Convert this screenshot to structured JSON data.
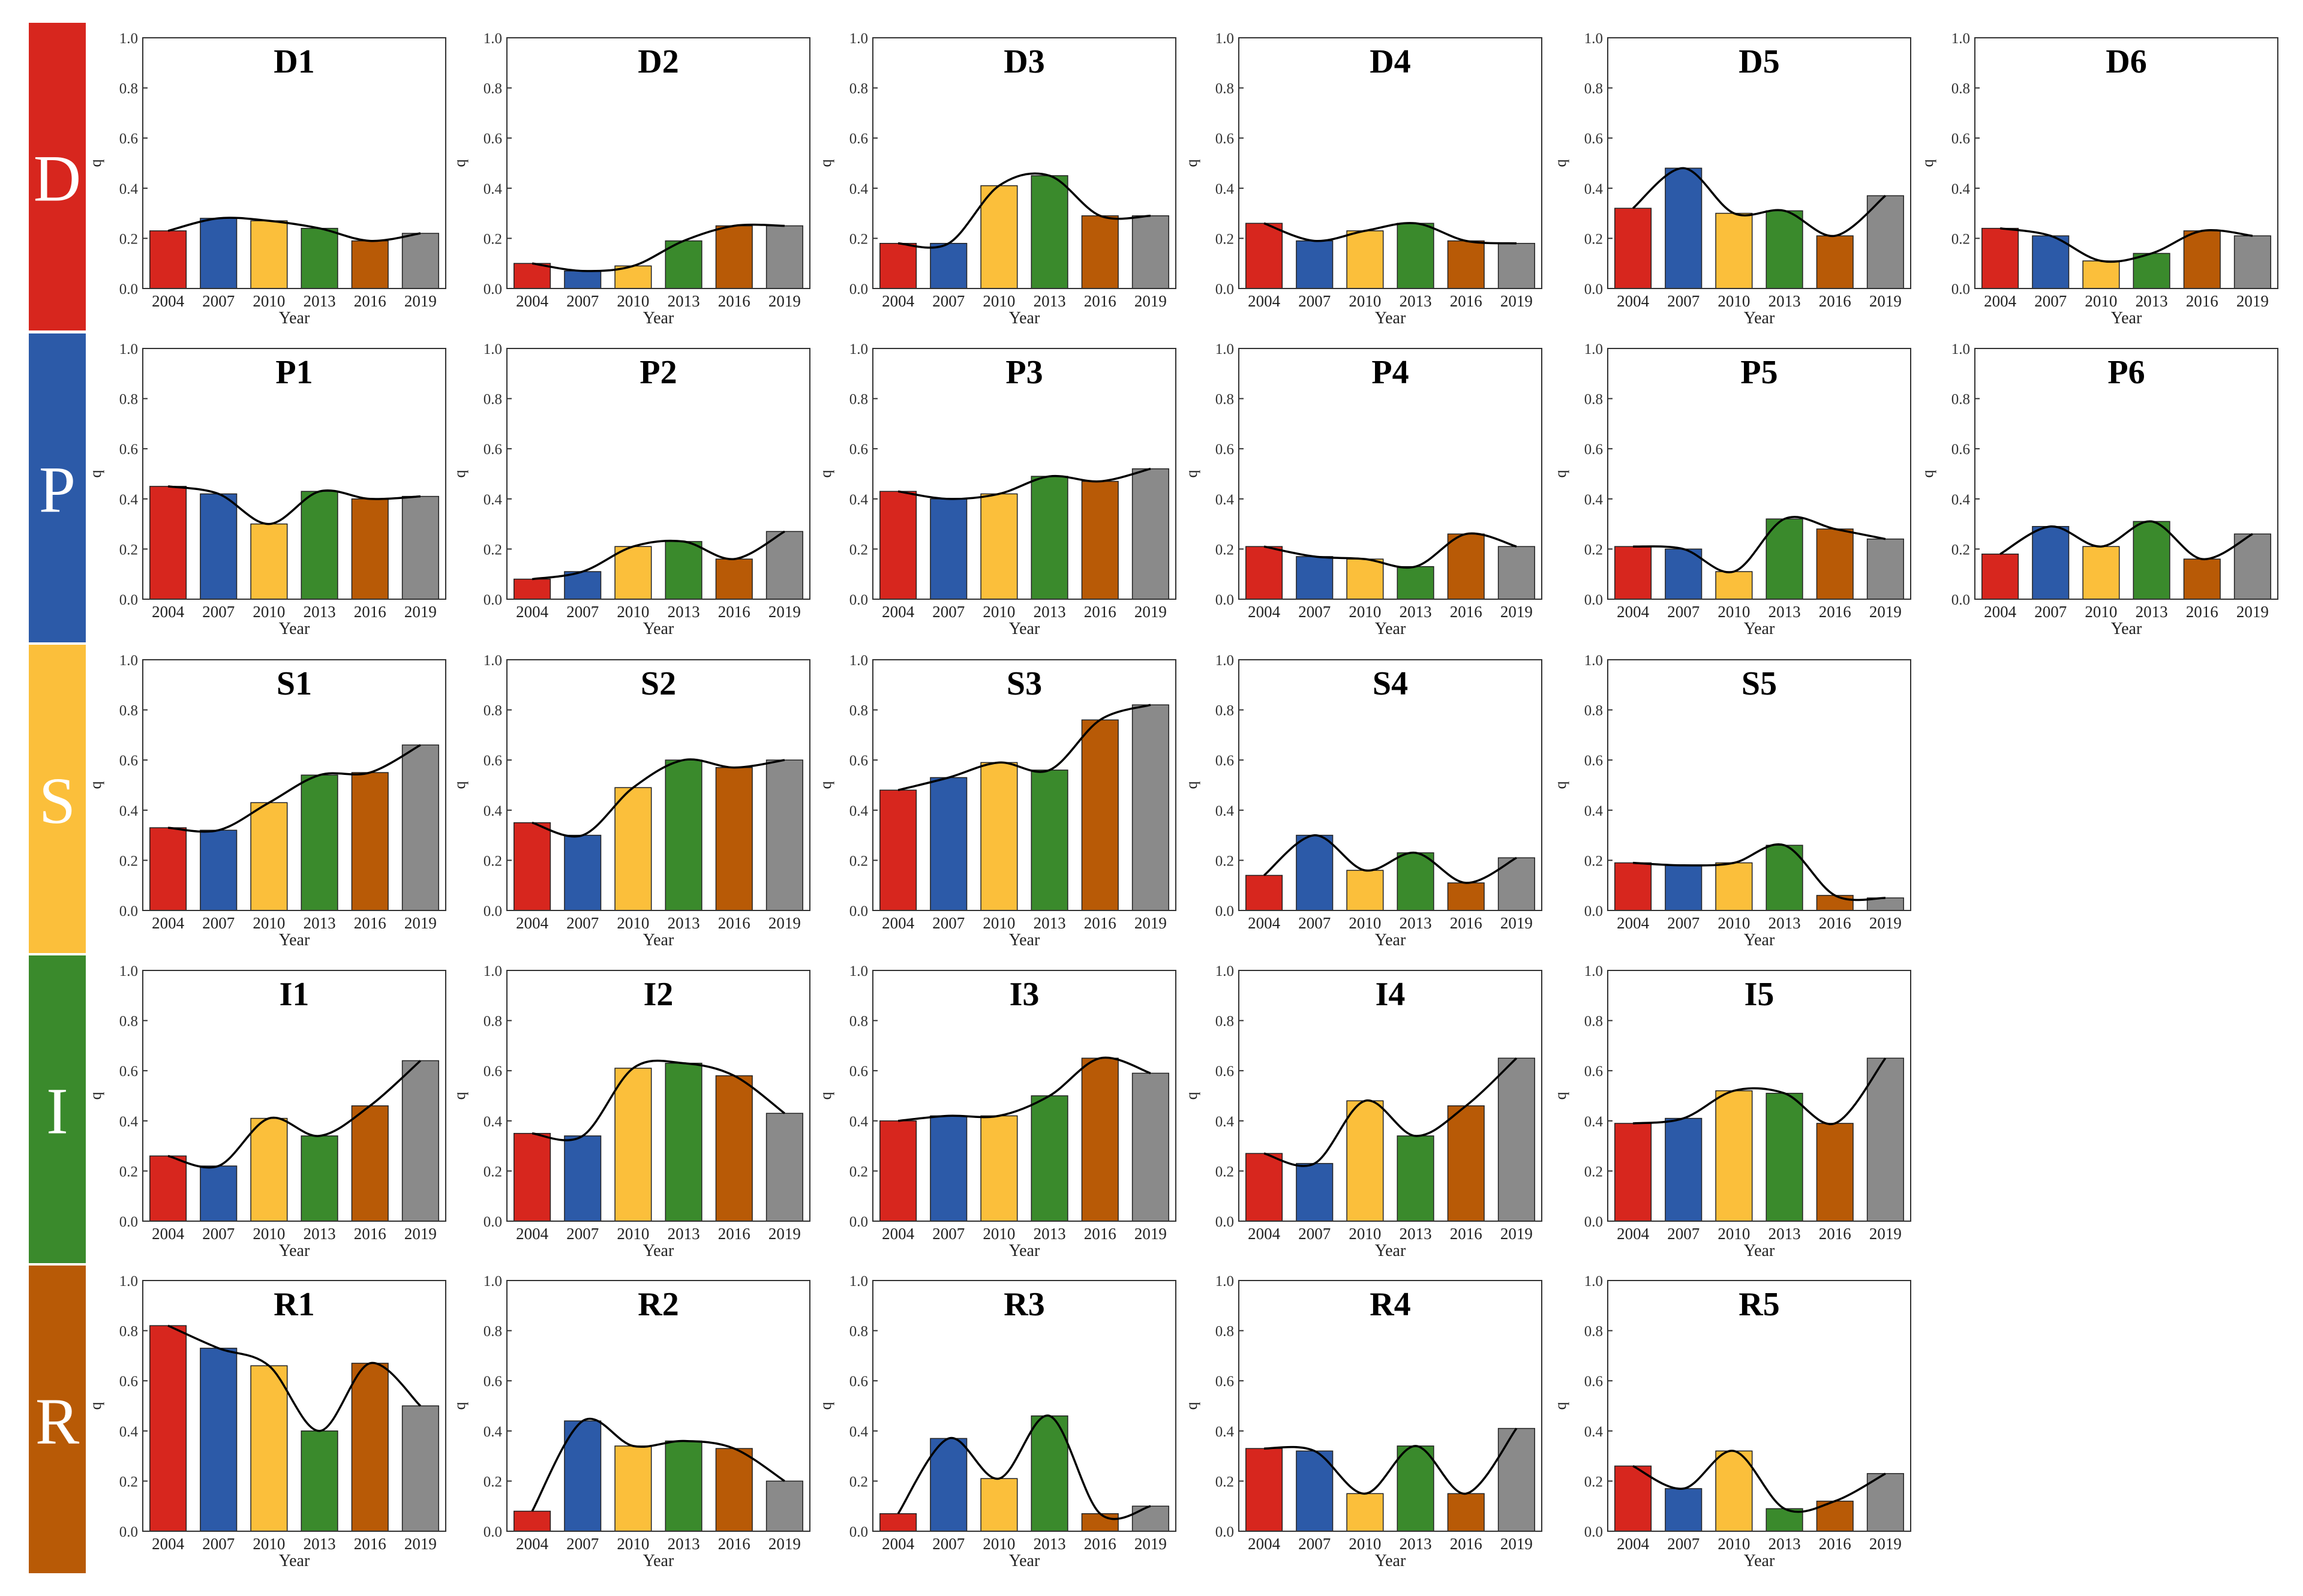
{
  "figure": {
    "colors": {
      "bars": [
        "#d7261e",
        "#2c5aa8",
        "#fbbf3b",
        "#3a8a2c",
        "#b85a06",
        "#8a8a8a"
      ],
      "bands": {
        "D": "#d7261e",
        "P": "#2c5aa8",
        "S": "#fbbf3b",
        "I": "#3a8a2c",
        "R": "#b85a06"
      },
      "curve": "#000000",
      "band_text": "#ffffff"
    },
    "rows": [
      {
        "band_label": "D",
        "charts": [
          0,
          1,
          2,
          3,
          4,
          5
        ]
      },
      {
        "band_label": "P",
        "charts": [
          6,
          7,
          8,
          9,
          10,
          11
        ]
      },
      {
        "band_label": "S",
        "charts": [
          12,
          13,
          14,
          15,
          16
        ]
      },
      {
        "band_label": "I",
        "charts": [
          17,
          18,
          19,
          20,
          21
        ]
      },
      {
        "band_label": "R",
        "charts": [
          22,
          23,
          24,
          25,
          26
        ]
      }
    ]
  },
  "chart_data": [
    {
      "type": "bar",
      "title": "D1",
      "categories": [
        "2004",
        "2007",
        "2010",
        "2013",
        "2016",
        "2019"
      ],
      "values": [
        0.23,
        0.28,
        0.27,
        0.24,
        0.19,
        0.22
      ],
      "xlabel": "Year",
      "ylabel": "q",
      "ylim": [
        0,
        1.0
      ],
      "yticks": [
        "0.0",
        "0.2",
        "0.4",
        "0.6",
        "0.8",
        "1.0"
      ]
    },
    {
      "type": "bar",
      "title": "D2",
      "categories": [
        "2004",
        "2007",
        "2010",
        "2013",
        "2016",
        "2019"
      ],
      "values": [
        0.1,
        0.07,
        0.09,
        0.19,
        0.25,
        0.25
      ],
      "xlabel": "Year",
      "ylabel": "q",
      "ylim": [
        0,
        1.0
      ],
      "yticks": [
        "0.0",
        "0.2",
        "0.4",
        "0.6",
        "0.8",
        "1.0"
      ]
    },
    {
      "type": "bar",
      "title": "D3",
      "categories": [
        "2004",
        "2007",
        "2010",
        "2013",
        "2016",
        "2019"
      ],
      "values": [
        0.18,
        0.18,
        0.41,
        0.45,
        0.29,
        0.29
      ],
      "xlabel": "Year",
      "ylabel": "q",
      "ylim": [
        0,
        1.0
      ],
      "yticks": [
        "0.0",
        "0.2",
        "0.4",
        "0.6",
        "0.8",
        "1.0"
      ]
    },
    {
      "type": "bar",
      "title": "D4",
      "categories": [
        "2004",
        "2007",
        "2010",
        "2013",
        "2016",
        "2019"
      ],
      "values": [
        0.26,
        0.19,
        0.23,
        0.26,
        0.19,
        0.18
      ],
      "xlabel": "Year",
      "ylabel": "q",
      "ylim": [
        0,
        1.0
      ],
      "yticks": [
        "0.0",
        "0.2",
        "0.4",
        "0.6",
        "0.8",
        "1.0"
      ]
    },
    {
      "type": "bar",
      "title": "D5",
      "categories": [
        "2004",
        "2007",
        "2010",
        "2013",
        "2016",
        "2019"
      ],
      "values": [
        0.32,
        0.48,
        0.3,
        0.31,
        0.21,
        0.37
      ],
      "xlabel": "Year",
      "ylabel": "q",
      "ylim": [
        0,
        1.0
      ],
      "yticks": [
        "0.0",
        "0.2",
        "0.4",
        "0.6",
        "0.8",
        "1.0"
      ]
    },
    {
      "type": "bar",
      "title": "D6",
      "categories": [
        "2004",
        "2007",
        "2010",
        "2013",
        "2016",
        "2019"
      ],
      "values": [
        0.24,
        0.21,
        0.11,
        0.14,
        0.23,
        0.21
      ],
      "xlabel": "Year",
      "ylabel": "q",
      "ylim": [
        0,
        1.0
      ],
      "yticks": [
        "0.0",
        "0.2",
        "0.4",
        "0.6",
        "0.8",
        "1.0"
      ]
    },
    {
      "type": "bar",
      "title": "P1",
      "categories": [
        "2004",
        "2007",
        "2010",
        "2013",
        "2016",
        "2019"
      ],
      "values": [
        0.45,
        0.42,
        0.3,
        0.43,
        0.4,
        0.41
      ],
      "xlabel": "Year",
      "ylabel": "q",
      "ylim": [
        0,
        1.0
      ],
      "yticks": [
        "0.0",
        "0.2",
        "0.4",
        "0.6",
        "0.8",
        "1.0"
      ]
    },
    {
      "type": "bar",
      "title": "P2",
      "categories": [
        "2004",
        "2007",
        "2010",
        "2013",
        "2016",
        "2019"
      ],
      "values": [
        0.08,
        0.11,
        0.21,
        0.23,
        0.16,
        0.27
      ],
      "xlabel": "Year",
      "ylabel": "q",
      "ylim": [
        0,
        1.0
      ],
      "yticks": [
        "0.0",
        "0.2",
        "0.4",
        "0.6",
        "0.8",
        "1.0"
      ]
    },
    {
      "type": "bar",
      "title": "P3",
      "categories": [
        "2004",
        "2007",
        "2010",
        "2013",
        "2016",
        "2019"
      ],
      "values": [
        0.43,
        0.4,
        0.42,
        0.49,
        0.47,
        0.52
      ],
      "xlabel": "Year",
      "ylabel": "q",
      "ylim": [
        0,
        1.0
      ],
      "yticks": [
        "0.0",
        "0.2",
        "0.4",
        "0.6",
        "0.8",
        "1.0"
      ]
    },
    {
      "type": "bar",
      "title": "P4",
      "categories": [
        "2004",
        "2007",
        "2010",
        "2013",
        "2016",
        "2019"
      ],
      "values": [
        0.21,
        0.17,
        0.16,
        0.13,
        0.26,
        0.21
      ],
      "xlabel": "Year",
      "ylabel": "q",
      "ylim": [
        0,
        1.0
      ],
      "yticks": [
        "0.0",
        "0.2",
        "0.4",
        "0.6",
        "0.8",
        "1.0"
      ]
    },
    {
      "type": "bar",
      "title": "P5",
      "categories": [
        "2004",
        "2007",
        "2010",
        "2013",
        "2016",
        "2019"
      ],
      "values": [
        0.21,
        0.2,
        0.11,
        0.32,
        0.28,
        0.24
      ],
      "xlabel": "Year",
      "ylabel": "q",
      "ylim": [
        0,
        1.0
      ],
      "yticks": [
        "0.0",
        "0.2",
        "0.4",
        "0.6",
        "0.8",
        "1.0"
      ]
    },
    {
      "type": "bar",
      "title": "P6",
      "categories": [
        "2004",
        "2007",
        "2010",
        "2013",
        "2016",
        "2019"
      ],
      "values": [
        0.18,
        0.29,
        0.21,
        0.31,
        0.16,
        0.26
      ],
      "xlabel": "Year",
      "ylabel": "q",
      "ylim": [
        0,
        1.0
      ],
      "yticks": [
        "0.0",
        "0.2",
        "0.4",
        "0.6",
        "0.8",
        "1.0"
      ]
    },
    {
      "type": "bar",
      "title": "S1",
      "categories": [
        "2004",
        "2007",
        "2010",
        "2013",
        "2016",
        "2019"
      ],
      "values": [
        0.33,
        0.32,
        0.43,
        0.54,
        0.55,
        0.66
      ],
      "xlabel": "Year",
      "ylabel": "q",
      "ylim": [
        0,
        1.0
      ],
      "yticks": [
        "0.0",
        "0.2",
        "0.4",
        "0.6",
        "0.8",
        "1.0"
      ]
    },
    {
      "type": "bar",
      "title": "S2",
      "categories": [
        "2004",
        "2007",
        "2010",
        "2013",
        "2016",
        "2019"
      ],
      "values": [
        0.35,
        0.3,
        0.49,
        0.6,
        0.57,
        0.6
      ],
      "xlabel": "Year",
      "ylabel": "q",
      "ylim": [
        0,
        1.0
      ],
      "yticks": [
        "0.0",
        "0.2",
        "0.4",
        "0.6",
        "0.8",
        "1.0"
      ]
    },
    {
      "type": "bar",
      "title": "S3",
      "categories": [
        "2004",
        "2007",
        "2010",
        "2013",
        "2016",
        "2019"
      ],
      "values": [
        0.48,
        0.53,
        0.59,
        0.56,
        0.76,
        0.82
      ],
      "xlabel": "Year",
      "ylabel": "q",
      "ylim": [
        0,
        1.0
      ],
      "yticks": [
        "0.0",
        "0.2",
        "0.4",
        "0.6",
        "0.8",
        "1.0"
      ]
    },
    {
      "type": "bar",
      "title": "S4",
      "categories": [
        "2004",
        "2007",
        "2010",
        "2013",
        "2016",
        "2019"
      ],
      "values": [
        0.14,
        0.3,
        0.16,
        0.23,
        0.11,
        0.21
      ],
      "xlabel": "Year",
      "ylabel": "q",
      "ylim": [
        0,
        1.0
      ],
      "yticks": [
        "0.0",
        "0.2",
        "0.4",
        "0.6",
        "0.8",
        "1.0"
      ]
    },
    {
      "type": "bar",
      "title": "S5",
      "categories": [
        "2004",
        "2007",
        "2010",
        "2013",
        "2016",
        "2019"
      ],
      "values": [
        0.19,
        0.18,
        0.19,
        0.26,
        0.06,
        0.05
      ],
      "xlabel": "Year",
      "ylabel": "q",
      "ylim": [
        0,
        1.0
      ],
      "yticks": [
        "0.0",
        "0.2",
        "0.4",
        "0.6",
        "0.8",
        "1.0"
      ]
    },
    {
      "type": "bar",
      "title": "I1",
      "categories": [
        "2004",
        "2007",
        "2010",
        "2013",
        "2016",
        "2019"
      ],
      "values": [
        0.26,
        0.22,
        0.41,
        0.34,
        0.46,
        0.64
      ],
      "xlabel": "Year",
      "ylabel": "q",
      "ylim": [
        0,
        1.0
      ],
      "yticks": [
        "0.0",
        "0.2",
        "0.4",
        "0.6",
        "0.8",
        "1.0"
      ]
    },
    {
      "type": "bar",
      "title": "I2",
      "categories": [
        "2004",
        "2007",
        "2010",
        "2013",
        "2016",
        "2019"
      ],
      "values": [
        0.35,
        0.34,
        0.61,
        0.63,
        0.58,
        0.43
      ],
      "xlabel": "Year",
      "ylabel": "q",
      "ylim": [
        0,
        1.0
      ],
      "yticks": [
        "0.0",
        "0.2",
        "0.4",
        "0.6",
        "0.8",
        "1.0"
      ]
    },
    {
      "type": "bar",
      "title": "I3",
      "categories": [
        "2004",
        "2007",
        "2010",
        "2013",
        "2016",
        "2019"
      ],
      "values": [
        0.4,
        0.42,
        0.42,
        0.5,
        0.65,
        0.59
      ],
      "xlabel": "Year",
      "ylabel": "q",
      "ylim": [
        0,
        1.0
      ],
      "yticks": [
        "0.0",
        "0.2",
        "0.4",
        "0.6",
        "0.8",
        "1.0"
      ]
    },
    {
      "type": "bar",
      "title": "I4",
      "categories": [
        "2004",
        "2007",
        "2010",
        "2013",
        "2016",
        "2019"
      ],
      "values": [
        0.27,
        0.23,
        0.48,
        0.34,
        0.46,
        0.65
      ],
      "xlabel": "Year",
      "ylabel": "q",
      "ylim": [
        0,
        1.0
      ],
      "yticks": [
        "0.0",
        "0.2",
        "0.4",
        "0.6",
        "0.8",
        "1.0"
      ]
    },
    {
      "type": "bar",
      "title": "I5",
      "categories": [
        "2004",
        "2007",
        "2010",
        "2013",
        "2016",
        "2019"
      ],
      "values": [
        0.39,
        0.41,
        0.52,
        0.51,
        0.39,
        0.65
      ],
      "xlabel": "Year",
      "ylabel": "q",
      "ylim": [
        0,
        1.0
      ],
      "yticks": [
        "0.0",
        "0.2",
        "0.4",
        "0.6",
        "0.8",
        "1.0"
      ]
    },
    {
      "type": "bar",
      "title": "R1",
      "categories": [
        "2004",
        "2007",
        "2010",
        "2013",
        "2016",
        "2019"
      ],
      "values": [
        0.82,
        0.73,
        0.66,
        0.4,
        0.67,
        0.5
      ],
      "xlabel": "Year",
      "ylabel": "q",
      "ylim": [
        0,
        1.0
      ],
      "yticks": [
        "0.0",
        "0.2",
        "0.4",
        "0.6",
        "0.8",
        "1.0"
      ]
    },
    {
      "type": "bar",
      "title": "R2",
      "categories": [
        "2004",
        "2007",
        "2010",
        "2013",
        "2016",
        "2019"
      ],
      "values": [
        0.08,
        0.44,
        0.34,
        0.36,
        0.33,
        0.2
      ],
      "xlabel": "Year",
      "ylabel": "q",
      "ylim": [
        0,
        1.0
      ],
      "yticks": [
        "0.0",
        "0.2",
        "0.4",
        "0.6",
        "0.8",
        "1.0"
      ]
    },
    {
      "type": "bar",
      "title": "R3",
      "categories": [
        "2004",
        "2007",
        "2010",
        "2013",
        "2016",
        "2019"
      ],
      "values": [
        0.07,
        0.37,
        0.21,
        0.46,
        0.07,
        0.1
      ],
      "xlabel": "Year",
      "ylabel": "q",
      "ylim": [
        0,
        1.0
      ],
      "yticks": [
        "0.0",
        "0.2",
        "0.4",
        "0.6",
        "0.8",
        "1.0"
      ]
    },
    {
      "type": "bar",
      "title": "R4",
      "categories": [
        "2004",
        "2007",
        "2010",
        "2013",
        "2016",
        "2019"
      ],
      "values": [
        0.33,
        0.32,
        0.15,
        0.34,
        0.15,
        0.41
      ],
      "xlabel": "Year",
      "ylabel": "q",
      "ylim": [
        0,
        1.0
      ],
      "yticks": [
        "0.0",
        "0.2",
        "0.4",
        "0.6",
        "0.8",
        "1.0"
      ]
    },
    {
      "type": "bar",
      "title": "R5",
      "categories": [
        "2004",
        "2007",
        "2010",
        "2013",
        "2016",
        "2019"
      ],
      "values": [
        0.26,
        0.17,
        0.32,
        0.09,
        0.12,
        0.23
      ],
      "xlabel": "Year",
      "ylabel": "q",
      "ylim": [
        0,
        1.0
      ],
      "yticks": [
        "0.0",
        "0.2",
        "0.4",
        "0.6",
        "0.8",
        "1.0"
      ]
    }
  ]
}
